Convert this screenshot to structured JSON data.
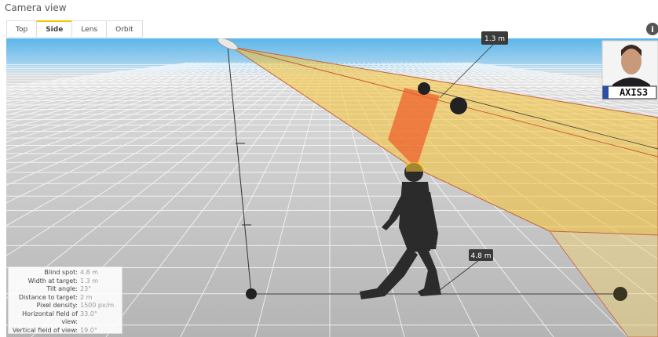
{
  "header": {
    "title": "Camera view"
  },
  "tabs": [
    "Top",
    "Side",
    "Lens",
    "Orbit"
  ],
  "info_icon": "i",
  "scene": {
    "labels": [
      "1.3 m",
      "4.8 m"
    ],
    "plate": "AXIS3"
  },
  "stats": [
    {
      "label": "Blind spot:",
      "value": "4.8 m"
    },
    {
      "label": "Width at target:",
      "value": "1.3 m"
    },
    {
      "label": "Tilt angle:",
      "value": "23°"
    },
    {
      "label": "Distance to target:",
      "value": "2 m"
    },
    {
      "label": "Pixel density:",
      "value": "1500 px/m"
    },
    {
      "label": "Horizontal field of view:",
      "value": "33.0°"
    },
    {
      "label": "Vertical field of view:",
      "value": "19.0°"
    }
  ]
}
